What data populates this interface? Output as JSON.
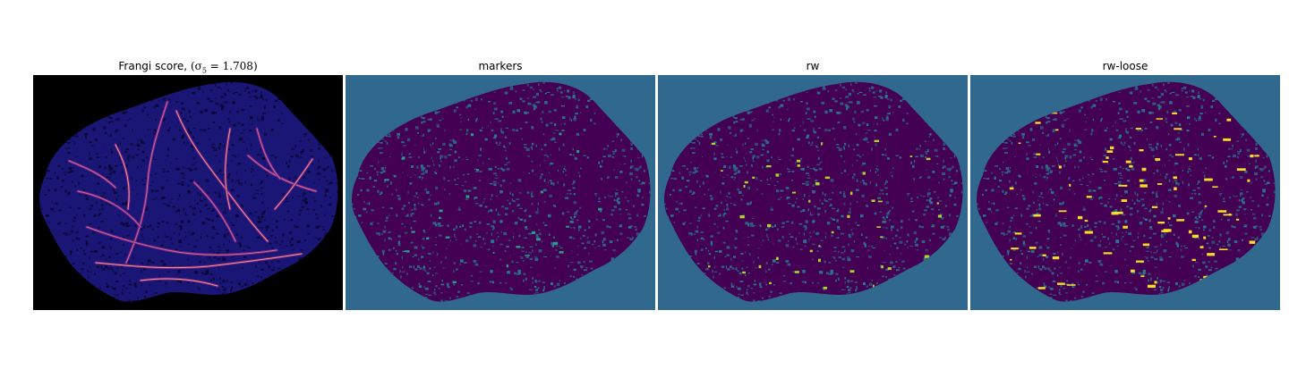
{
  "figure": {
    "panels": [
      {
        "id": "frangi",
        "title": "Frangi score, ",
        "title_math_prefix": "(σ",
        "title_math_sub": "5",
        "title_math_suffix": " = 1.708)",
        "background": "#000000",
        "tissue": "#1a1676",
        "dots": "#0a0533",
        "vessel": "#7a1d9a",
        "highlight": "#f7b05e",
        "core": "#ffffd9"
      },
      {
        "id": "markers",
        "title": "markers",
        "background": "#31688e",
        "tissue": "#440154",
        "dots": "#2a788e",
        "vessel": "#440154",
        "highlight": "#2aa28a"
      },
      {
        "id": "rw",
        "title": "rw",
        "background": "#31688e",
        "tissue": "#440154",
        "dots": "#2a788e",
        "vessel": "#440154",
        "highlight": "#b5de2b"
      },
      {
        "id": "rw-loose",
        "title": "rw-loose",
        "background": "#31688e",
        "tissue": "#440154",
        "dots": "#2a788e",
        "vessel": "#440154",
        "highlight": "#fde725"
      }
    ]
  }
}
